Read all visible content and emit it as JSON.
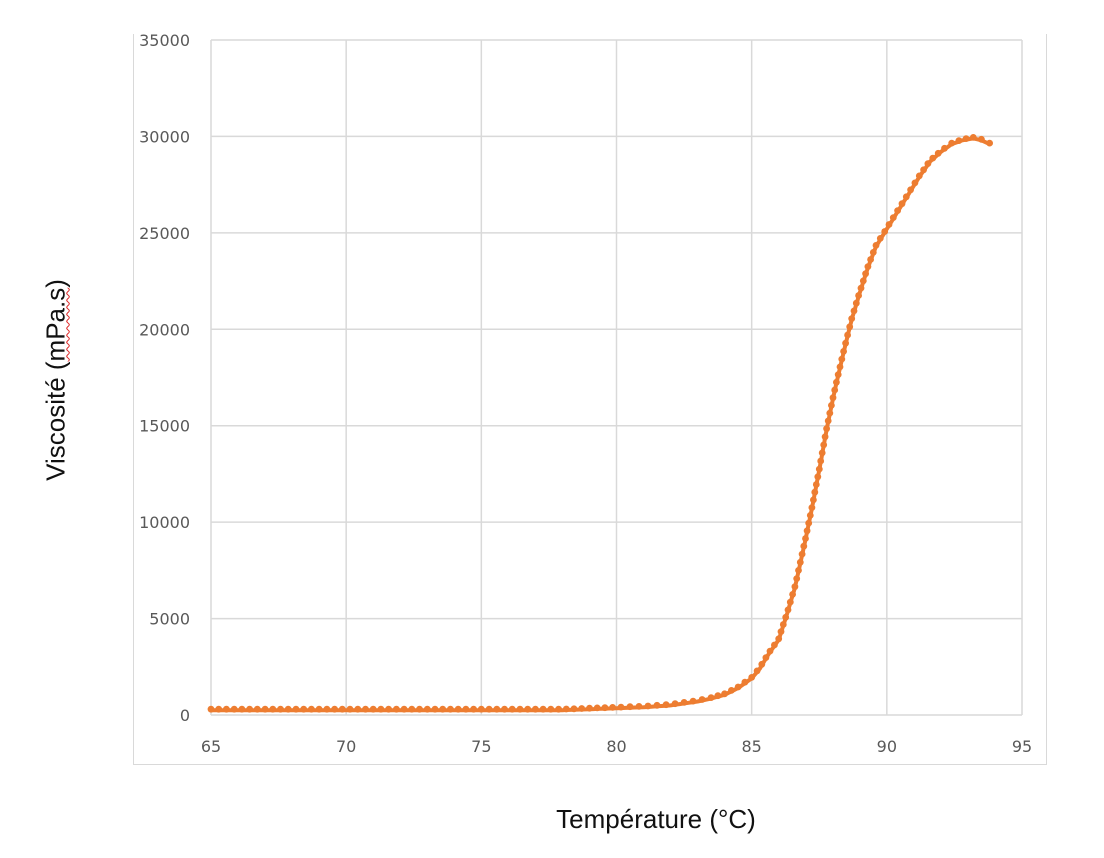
{
  "chart_data": {
    "type": "scatter",
    "title": "",
    "xlabel": "Température (°C)",
    "ylabel": "Viscosité (mPa.s)",
    "xlim": [
      65,
      95
    ],
    "ylim": [
      0,
      35000
    ],
    "x_ticks": [
      65,
      70,
      75,
      80,
      85,
      90,
      95
    ],
    "y_ticks": [
      0,
      5000,
      10000,
      15000,
      20000,
      25000,
      30000,
      35000
    ],
    "grid": true,
    "legend": null,
    "series": [
      {
        "name": "Viscosité",
        "color": "#ED7D31",
        "marker": "circle",
        "points": [
          [
            65.0,
            250
          ],
          [
            66.0,
            250
          ],
          [
            67.0,
            250
          ],
          [
            68.0,
            250
          ],
          [
            69.0,
            250
          ],
          [
            70.0,
            250
          ],
          [
            71.0,
            250
          ],
          [
            72.0,
            250
          ],
          [
            73.0,
            250
          ],
          [
            74.0,
            250
          ],
          [
            75.0,
            250
          ],
          [
            76.0,
            250
          ],
          [
            77.0,
            250
          ],
          [
            78.0,
            250
          ],
          [
            79.0,
            300
          ],
          [
            80.0,
            350
          ],
          [
            80.5,
            380
          ],
          [
            81.0,
            400
          ],
          [
            81.5,
            450
          ],
          [
            82.0,
            500
          ],
          [
            82.5,
            600
          ],
          [
            83.0,
            700
          ],
          [
            83.5,
            850
          ],
          [
            84.0,
            1050
          ],
          [
            84.5,
            1400
          ],
          [
            85.0,
            1900
          ],
          [
            85.3,
            2400
          ],
          [
            85.6,
            3100
          ],
          [
            86.0,
            3900
          ],
          [
            86.3,
            5200
          ],
          [
            86.6,
            6600
          ],
          [
            86.9,
            8500
          ],
          [
            87.2,
            10500
          ],
          [
            87.5,
            12700
          ],
          [
            87.8,
            15000
          ],
          [
            88.1,
            17000
          ],
          [
            88.4,
            18800
          ],
          [
            88.7,
            20500
          ],
          [
            89.0,
            21900
          ],
          [
            89.3,
            23200
          ],
          [
            89.6,
            24300
          ],
          [
            90.0,
            25200
          ],
          [
            90.4,
            26100
          ],
          [
            90.8,
            27000
          ],
          [
            91.2,
            27900
          ],
          [
            91.6,
            28700
          ],
          [
            92.0,
            29200
          ],
          [
            92.4,
            29600
          ],
          [
            92.8,
            29800
          ],
          [
            93.2,
            29900
          ],
          [
            93.5,
            29800
          ],
          [
            93.8,
            29600
          ]
        ]
      }
    ]
  },
  "axes": {
    "x_title": "Température (°C)",
    "y_title_main": "Viscosité (",
    "y_title_unit": "mPa.s",
    "y_title_close": ")"
  }
}
